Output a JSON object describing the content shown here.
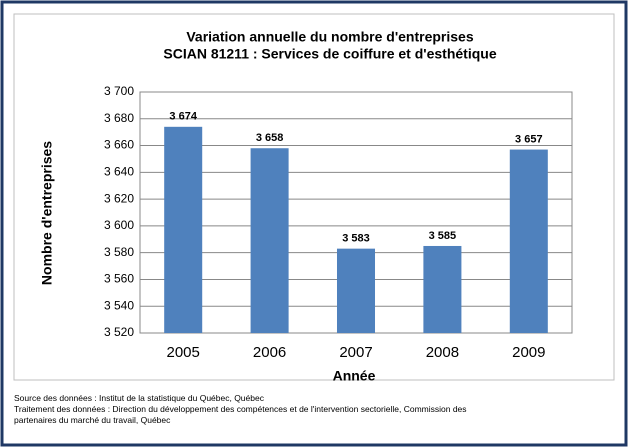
{
  "chart_data": {
    "type": "bar",
    "title": "Variation annuelle du nombre d'entreprises",
    "subtitle": "SCIAN 81211 : Services de coiffure et d'esthétique",
    "x_label": "Année",
    "y_label": "Nombre d'entreprises",
    "categories": [
      "2005",
      "2006",
      "2007",
      "2008",
      "2009"
    ],
    "values": [
      3674,
      3658,
      3583,
      3585,
      3657
    ],
    "value_labels": [
      "3 674",
      "3 658",
      "3 583",
      "3 585",
      "3 657"
    ],
    "color": "#4f81bd",
    "ylim": [
      3520,
      3700
    ],
    "yticks": [
      {
        "value": 3520,
        "label": "3 520"
      },
      {
        "value": 3540,
        "label": "3 540"
      },
      {
        "value": 3560,
        "label": "3 560"
      },
      {
        "value": 3580,
        "label": "3 580"
      },
      {
        "value": 3600,
        "label": "3 600"
      },
      {
        "value": 3620,
        "label": "3 620"
      },
      {
        "value": 3640,
        "label": "3 640"
      },
      {
        "value": 3660,
        "label": "3 660"
      },
      {
        "value": 3680,
        "label": "3 680"
      },
      {
        "value": 3700,
        "label": "3 700"
      }
    ],
    "grid": true,
    "notes": [
      "Source des données : Institut de la statistique du Québec, Québec",
      "Traitement des données : Direction du développement des compétences et de l'intervention sectorielle, Commission des",
      "partenaires du marché du travail, Québec"
    ]
  }
}
